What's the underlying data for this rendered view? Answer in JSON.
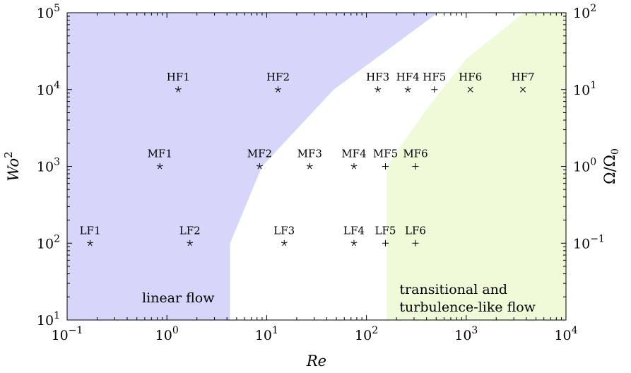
{
  "chart_data": {
    "type": "scatter",
    "title": "",
    "xlabel": "Re",
    "ylabel": "Wo",
    "ylabel_superscript": "2",
    "y2label": "Ω/Ω",
    "y2label_subscript": "0",
    "xscale": "log",
    "yscale": "log",
    "y2scale": "log",
    "xlim": [
      0.1,
      10000
    ],
    "ylim": [
      10,
      100000
    ],
    "y2lim": [
      0.01,
      100
    ],
    "grid": false,
    "x_ticks": [
      {
        "value": 0.1,
        "base": "10",
        "exp": "−1"
      },
      {
        "value": 1,
        "base": "10",
        "exp": "0"
      },
      {
        "value": 10,
        "base": "10",
        "exp": "1"
      },
      {
        "value": 100,
        "base": "10",
        "exp": "2"
      },
      {
        "value": 1000,
        "base": "10",
        "exp": "3"
      },
      {
        "value": 10000,
        "base": "10",
        "exp": "4"
      }
    ],
    "y_ticks": [
      {
        "value": 10,
        "base": "10",
        "exp": "1"
      },
      {
        "value": 100,
        "base": "10",
        "exp": "2"
      },
      {
        "value": 1000,
        "base": "10",
        "exp": "3"
      },
      {
        "value": 10000,
        "base": "10",
        "exp": "4"
      },
      {
        "value": 100000,
        "base": "10",
        "exp": "5"
      }
    ],
    "y2_ticks": [
      {
        "value": 0.1,
        "base": "10",
        "exp": "−1"
      },
      {
        "value": 1,
        "base": "10",
        "exp": "0"
      },
      {
        "value": 10,
        "base": "10",
        "exp": "1"
      },
      {
        "value": 100,
        "base": "10",
        "exp": "2"
      }
    ],
    "regions": [
      {
        "name": "linear flow",
        "color": "#d6d6fa",
        "polygon": [
          [
            0.1,
            10
          ],
          [
            4.3,
            10
          ],
          [
            4.3,
            100
          ],
          [
            9,
            1000
          ],
          [
            47,
            10000
          ],
          [
            520,
            100000
          ],
          [
            0.1,
            100000
          ]
        ]
      },
      {
        "name": "transitional and turbulence-like flow",
        "color": "#eefad8",
        "polygon": [
          [
            160,
            10
          ],
          [
            10000,
            10
          ],
          [
            10000,
            100000
          ],
          [
            3800,
            100000
          ],
          [
            1000,
            25000
          ],
          [
            420,
            6000
          ],
          [
            160,
            1000
          ]
        ]
      }
    ],
    "region_labels": [
      {
        "region": 0,
        "lines": [
          "linear flow"
        ],
        "x": 1.3,
        "y": 17
      },
      {
        "region": 1,
        "lines": [
          "transitional and",
          "turbulence-like flow"
        ],
        "x": 1300,
        "y": 22
      }
    ],
    "points": [
      {
        "label": "LF1",
        "x": 0.17,
        "y": 100,
        "marker": "star"
      },
      {
        "label": "LF2",
        "x": 1.7,
        "y": 100,
        "marker": "star"
      },
      {
        "label": "LF3",
        "x": 15,
        "y": 100,
        "marker": "star"
      },
      {
        "label": "LF4",
        "x": 75,
        "y": 100,
        "marker": "star"
      },
      {
        "label": "LF5",
        "x": 155,
        "y": 100,
        "marker": "plus"
      },
      {
        "label": "LF6",
        "x": 310,
        "y": 100,
        "marker": "plus"
      },
      {
        "label": "MF1",
        "x": 0.85,
        "y": 1000,
        "marker": "star"
      },
      {
        "label": "MF2",
        "x": 8.5,
        "y": 1000,
        "marker": "star"
      },
      {
        "label": "MF3",
        "x": 27,
        "y": 1000,
        "marker": "star"
      },
      {
        "label": "MF4",
        "x": 75,
        "y": 1000,
        "marker": "star"
      },
      {
        "label": "MF5",
        "x": 155,
        "y": 1000,
        "marker": "plus"
      },
      {
        "label": "MF6",
        "x": 310,
        "y": 1000,
        "marker": "plus"
      },
      {
        "label": "HF1",
        "x": 1.3,
        "y": 10000,
        "marker": "star"
      },
      {
        "label": "HF2",
        "x": 13,
        "y": 10000,
        "marker": "star"
      },
      {
        "label": "HF3",
        "x": 130,
        "y": 10000,
        "marker": "star"
      },
      {
        "label": "HF4",
        "x": 260,
        "y": 10000,
        "marker": "star"
      },
      {
        "label": "HF5",
        "x": 480,
        "y": 10000,
        "marker": "plus"
      },
      {
        "label": "HF6",
        "x": 1100,
        "y": 10000,
        "marker": "cross"
      },
      {
        "label": "HF7",
        "x": 3700,
        "y": 10000,
        "marker": "cross"
      }
    ]
  }
}
